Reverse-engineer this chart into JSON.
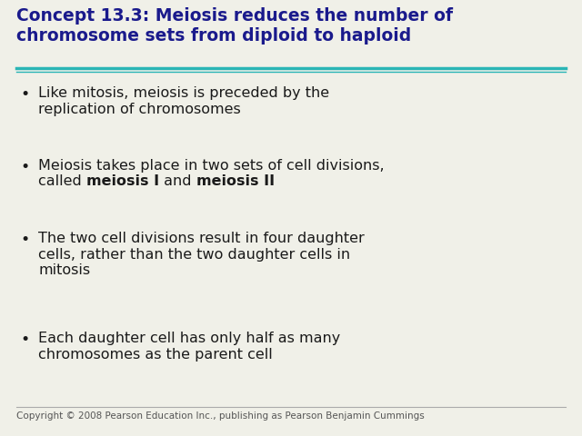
{
  "title_line1": "Concept 13.3: Meiosis reduces the number of",
  "title_line2": "chromosome sets from diploid to haploid",
  "title_color": "#1a1a8c",
  "title_fontsize": 13.5,
  "separator_color": "#2ab5b5",
  "background_color": "#f0f0e8",
  "bullet_color": "#1a1a1a",
  "bullet_fontsize": 11.5,
  "bullets": [
    {
      "lines": [
        "Like mitosis, meiosis is preceded by the",
        "replication of chromosomes"
      ],
      "mixed": false
    },
    {
      "lines": [
        "Meiosis takes place in two sets of cell divisions,"
      ],
      "line2_parts": [
        {
          "text": "called ",
          "bold": false
        },
        {
          "text": "meiosis I",
          "bold": true
        },
        {
          "text": " and ",
          "bold": false
        },
        {
          "text": "meiosis II",
          "bold": true
        }
      ],
      "mixed": true
    },
    {
      "lines": [
        "The two cell divisions result in four daughter",
        "cells, rather than the two daughter cells in",
        "mitosis"
      ],
      "mixed": false
    },
    {
      "lines": [
        "Each daughter cell has only half as many",
        "chromosomes as the parent cell"
      ],
      "mixed": false
    }
  ],
  "footer_text": "Copyright © 2008 Pearson Education Inc., publishing as Pearson Benjamin Cummings",
  "footer_color": "#555555",
  "footer_fontsize": 7.5
}
